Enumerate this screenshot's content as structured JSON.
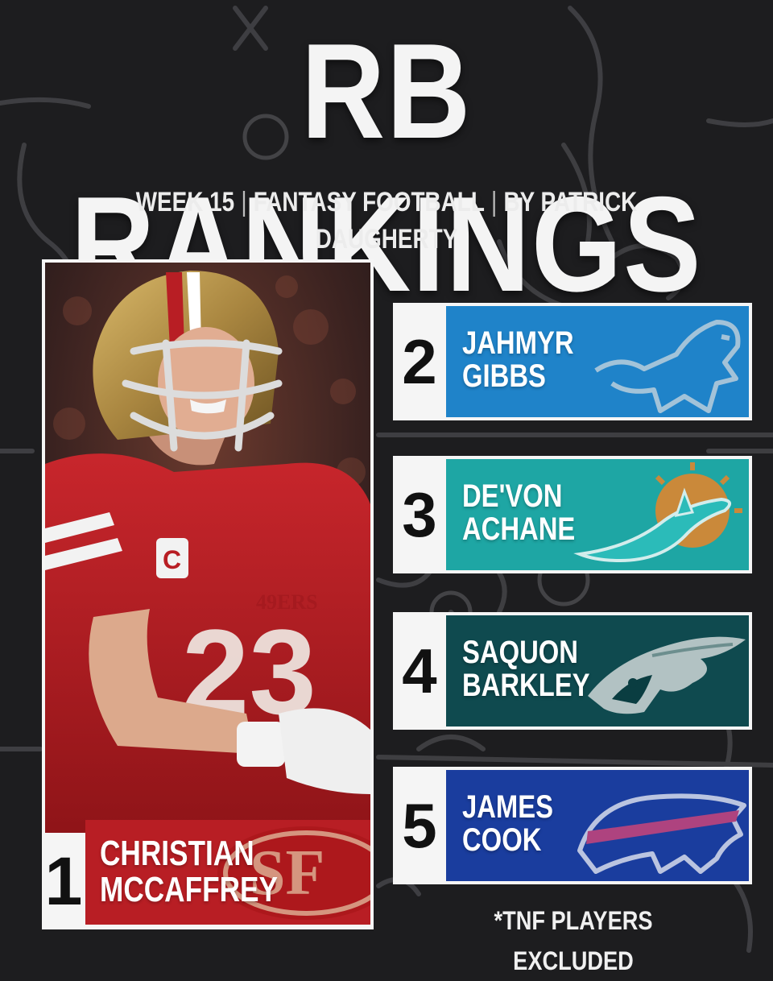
{
  "header": {
    "title": "RB RANKINGS",
    "subtitle_parts": [
      "WEEK 15",
      "FANTASY FOOTBALL",
      "BY PATRICK DAUGHERTY"
    ],
    "separator": "|"
  },
  "featured": {
    "rank": "1",
    "first_name": "CHRISTIAN",
    "last_name": "MCCAFFREY",
    "team_logo_icon": "49ers-sf-logo",
    "jersey_text": "49ERS",
    "banner_color": "#b81e24"
  },
  "rankings": [
    {
      "rank": "2",
      "first_name": "JAHMYR",
      "last_name": "GIBBS",
      "team_logo_icon": "lions-logo",
      "color": "#1f83c9"
    },
    {
      "rank": "3",
      "first_name": "DE'VON",
      "last_name": "ACHANE",
      "team_logo_icon": "dolphins-logo",
      "color": "#1ea6a4"
    },
    {
      "rank": "4",
      "first_name": "SAQUON",
      "last_name": "BARKLEY",
      "team_logo_icon": "eagles-logo",
      "color": "#0f4a4f"
    },
    {
      "rank": "5",
      "first_name": "JAMES",
      "last_name": "COOK",
      "team_logo_icon": "bills-logo",
      "color": "#1a3d9e"
    }
  ],
  "footnote": "*TNF PLAYERS EXCLUDED"
}
